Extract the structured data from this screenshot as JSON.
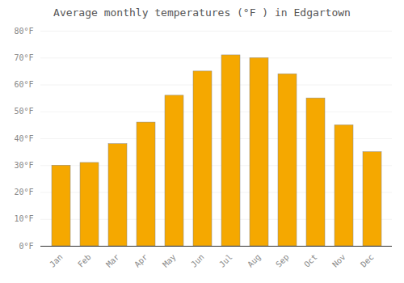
{
  "chart_data": {
    "type": "bar",
    "title": "Average monthly temperatures (°F ) in Edgartown",
    "categories": [
      "Jan",
      "Feb",
      "Mar",
      "Apr",
      "May",
      "Jun",
      "Jul",
      "Aug",
      "Sep",
      "Oct",
      "Nov",
      "Dec"
    ],
    "values": [
      30,
      31,
      38,
      46,
      56,
      65,
      71,
      70,
      64,
      55,
      45,
      35
    ],
    "color": "#F5A800",
    "ylim": [
      0,
      80
    ],
    "yticks": [
      {
        "value": 0,
        "label": "0°F"
      },
      {
        "value": 10,
        "label": "10°F"
      },
      {
        "value": 20,
        "label": "20°F"
      },
      {
        "value": 30,
        "label": "30°F"
      },
      {
        "value": 40,
        "label": "40°F"
      },
      {
        "value": 50,
        "label": "50°F"
      },
      {
        "value": 60,
        "label": "60°F"
      },
      {
        "value": 70,
        "label": "70°F"
      },
      {
        "value": 80,
        "label": "80°F"
      }
    ],
    "grid": true
  }
}
